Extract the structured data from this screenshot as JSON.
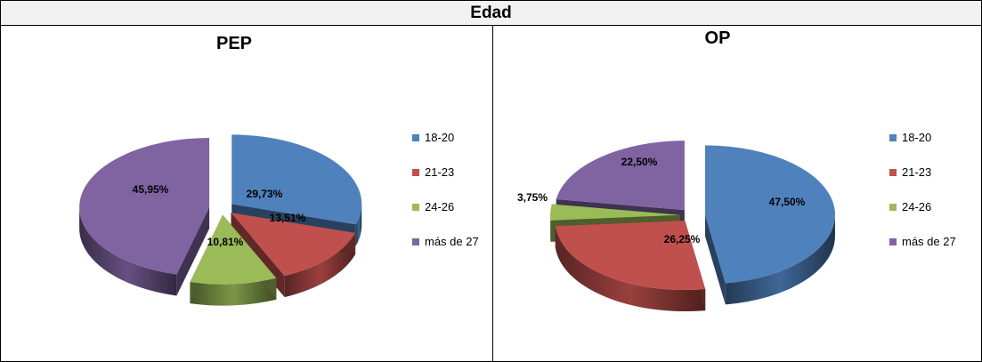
{
  "header": {
    "title": "Edad"
  },
  "chart_data": [
    {
      "type": "pie",
      "title": "PEP",
      "categories": [
        "18-20",
        "21-23",
        "24-26",
        "más de 27"
      ],
      "values": [
        29.73,
        13.51,
        10.81,
        45.95
      ],
      "labels": [
        "29,73%",
        "13,51%",
        "10,81%",
        "45,95%"
      ],
      "colors": [
        "#4f81bd",
        "#c0504d",
        "#9bbb59",
        "#8064a2"
      ],
      "legend": "right",
      "style": "3d-exploded"
    },
    {
      "type": "pie",
      "title": "OP",
      "categories": [
        "18-20",
        "21-23",
        "24-26",
        "más de 27"
      ],
      "values": [
        47.5,
        26.25,
        3.75,
        22.5
      ],
      "labels": [
        "47,50%",
        "26,25%",
        "3,75%",
        "22,50%"
      ],
      "colors": [
        "#4f81bd",
        "#c0504d",
        "#9bbb59",
        "#8064a2"
      ],
      "legend": "right",
      "style": "3d-exploded"
    }
  ]
}
